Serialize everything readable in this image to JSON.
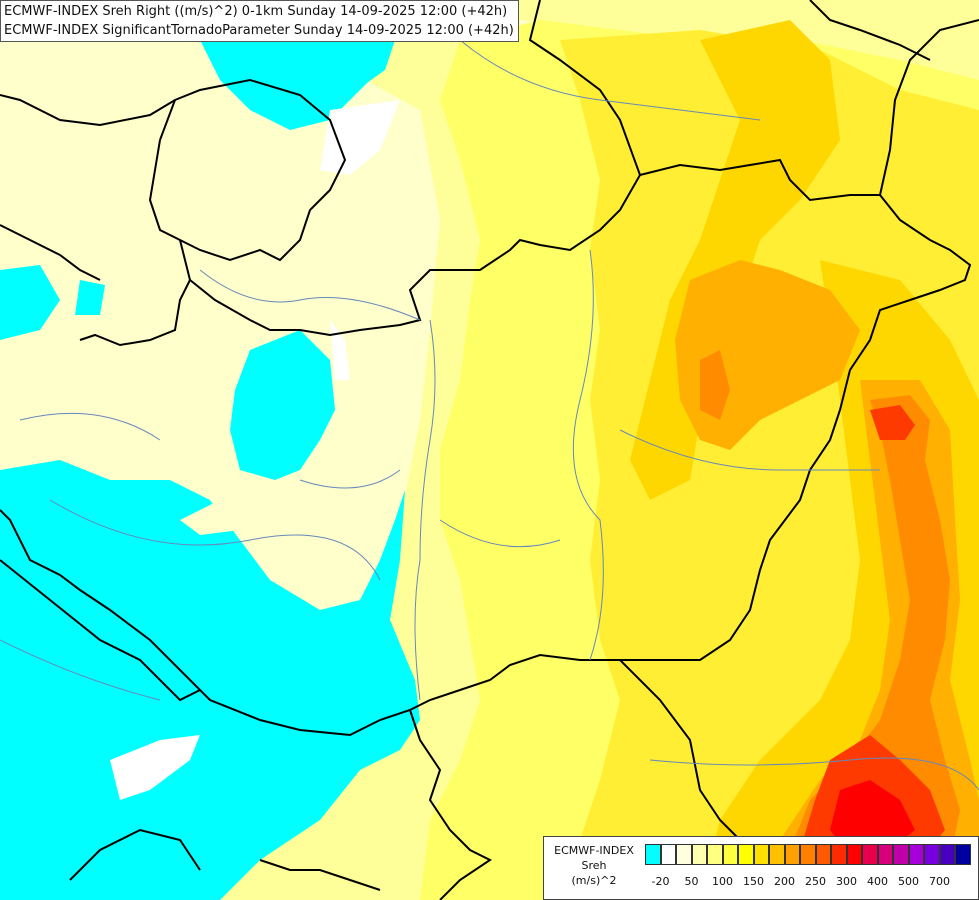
{
  "header": {
    "line1": "ECMWF-INDEX Sreh Right ((m/s)^2) 0-1km Sunday 14-09-2025 12:00 (+42h)",
    "line2": "ECMWF-INDEX SignificantTornadoParameter Sunday 14-09-2025 12:00 (+42h)"
  },
  "legend": {
    "title1": "ECMWF-INDEX",
    "title2": "Sreh",
    "unit": "(m/s)^2",
    "colors": [
      "#00ffff",
      "#ffffff",
      "#ffffe0",
      "#ffffb0",
      "#ffff80",
      "#ffff40",
      "#ffff00",
      "#ffe000",
      "#ffc000",
      "#ffa000",
      "#ff8000",
      "#ff5a00",
      "#ff2a00",
      "#ff0000",
      "#e8004c",
      "#d8007a",
      "#c000a8",
      "#a800d8",
      "#7800e0",
      "#4800c0",
      "#0000a0"
    ],
    "ticks": [
      {
        "label": "-20",
        "at": 1
      },
      {
        "label": "50",
        "at": 3
      },
      {
        "label": "100",
        "at": 5
      },
      {
        "label": "150",
        "at": 7
      },
      {
        "label": "200",
        "at": 9
      },
      {
        "label": "250",
        "at": 11
      },
      {
        "label": "300",
        "at": 13
      },
      {
        "label": "400",
        "at": 15
      },
      {
        "label": "500",
        "at": 17
      },
      {
        "label": "700",
        "at": 19
      }
    ]
  },
  "palette": {
    "cyan": "#00ffff",
    "white": "#ffffff",
    "pale": "#ffffcc",
    "lightyellow": "#ffff99",
    "yellow": "#ffff66",
    "gold": "#ffee33",
    "amber": "#ffd700",
    "orange": "#ffb000",
    "deeporange": "#ff8c00",
    "red": "#ff3a00",
    "brightred": "#ff0000",
    "border": "#000000",
    "river": "#6688bb"
  }
}
